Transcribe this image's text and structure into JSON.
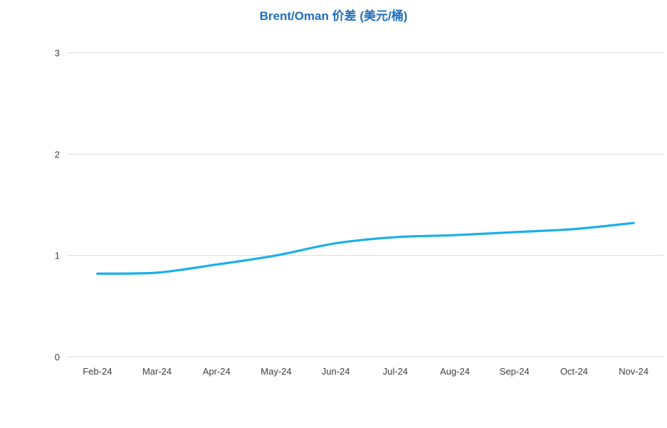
{
  "chart_data": {
    "type": "line",
    "title": "Brent/Oman 价差 (美元/桶)",
    "xlabel": "",
    "ylabel": "",
    "categories": [
      "Feb-24",
      "Mar-24",
      "Apr-24",
      "May-24",
      "Jun-24",
      "Jul-24",
      "Aug-24",
      "Sep-24",
      "Oct-24",
      "Nov-24"
    ],
    "series": [
      {
        "values": [
          0.82,
          0.83,
          0.91,
          1.0,
          1.12,
          1.18,
          1.2,
          1.23,
          1.26,
          1.32
        ],
        "color": "#1ab0ea"
      }
    ],
    "ylim": [
      0,
      3
    ],
    "yticks": [
      0,
      1,
      2,
      3
    ],
    "grid": true,
    "legend": "none",
    "gridline_color": "#d9d9d9",
    "title_color": "#1f6fbf"
  }
}
